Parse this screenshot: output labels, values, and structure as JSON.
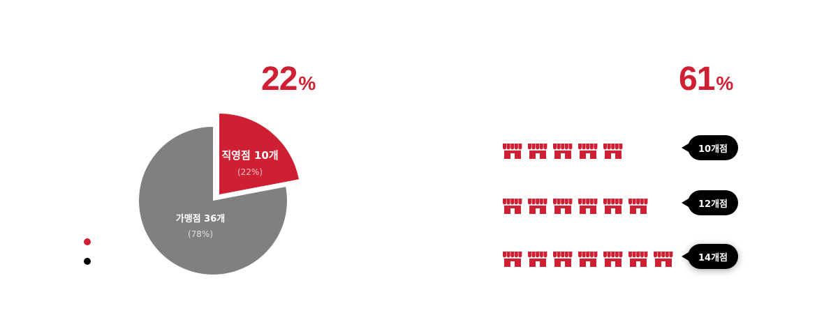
{
  "left_stat": {
    "value": "22",
    "unit": "%"
  },
  "right_stat": {
    "value": "61",
    "unit": "%"
  },
  "pie": {
    "slices": [
      {
        "name": "직영점 10개",
        "sub": "(22%)",
        "fraction": 0.22,
        "color": "#cf1f32"
      },
      {
        "name": "가맹점 36개",
        "sub": "(78%)",
        "fraction": 0.78,
        "color": "#808080"
      }
    ]
  },
  "legend_colors": [
    "#cf1f32",
    "#000000"
  ],
  "store_rows": [
    {
      "count": 5,
      "label": "10개점"
    },
    {
      "count": 6,
      "label": "12개점"
    },
    {
      "count": 7,
      "label": "14개점"
    }
  ],
  "colors": {
    "accent": "#cf1f32",
    "neutral": "#808080",
    "bubble": "#000000"
  },
  "icons": {
    "store": "store-icon"
  }
}
